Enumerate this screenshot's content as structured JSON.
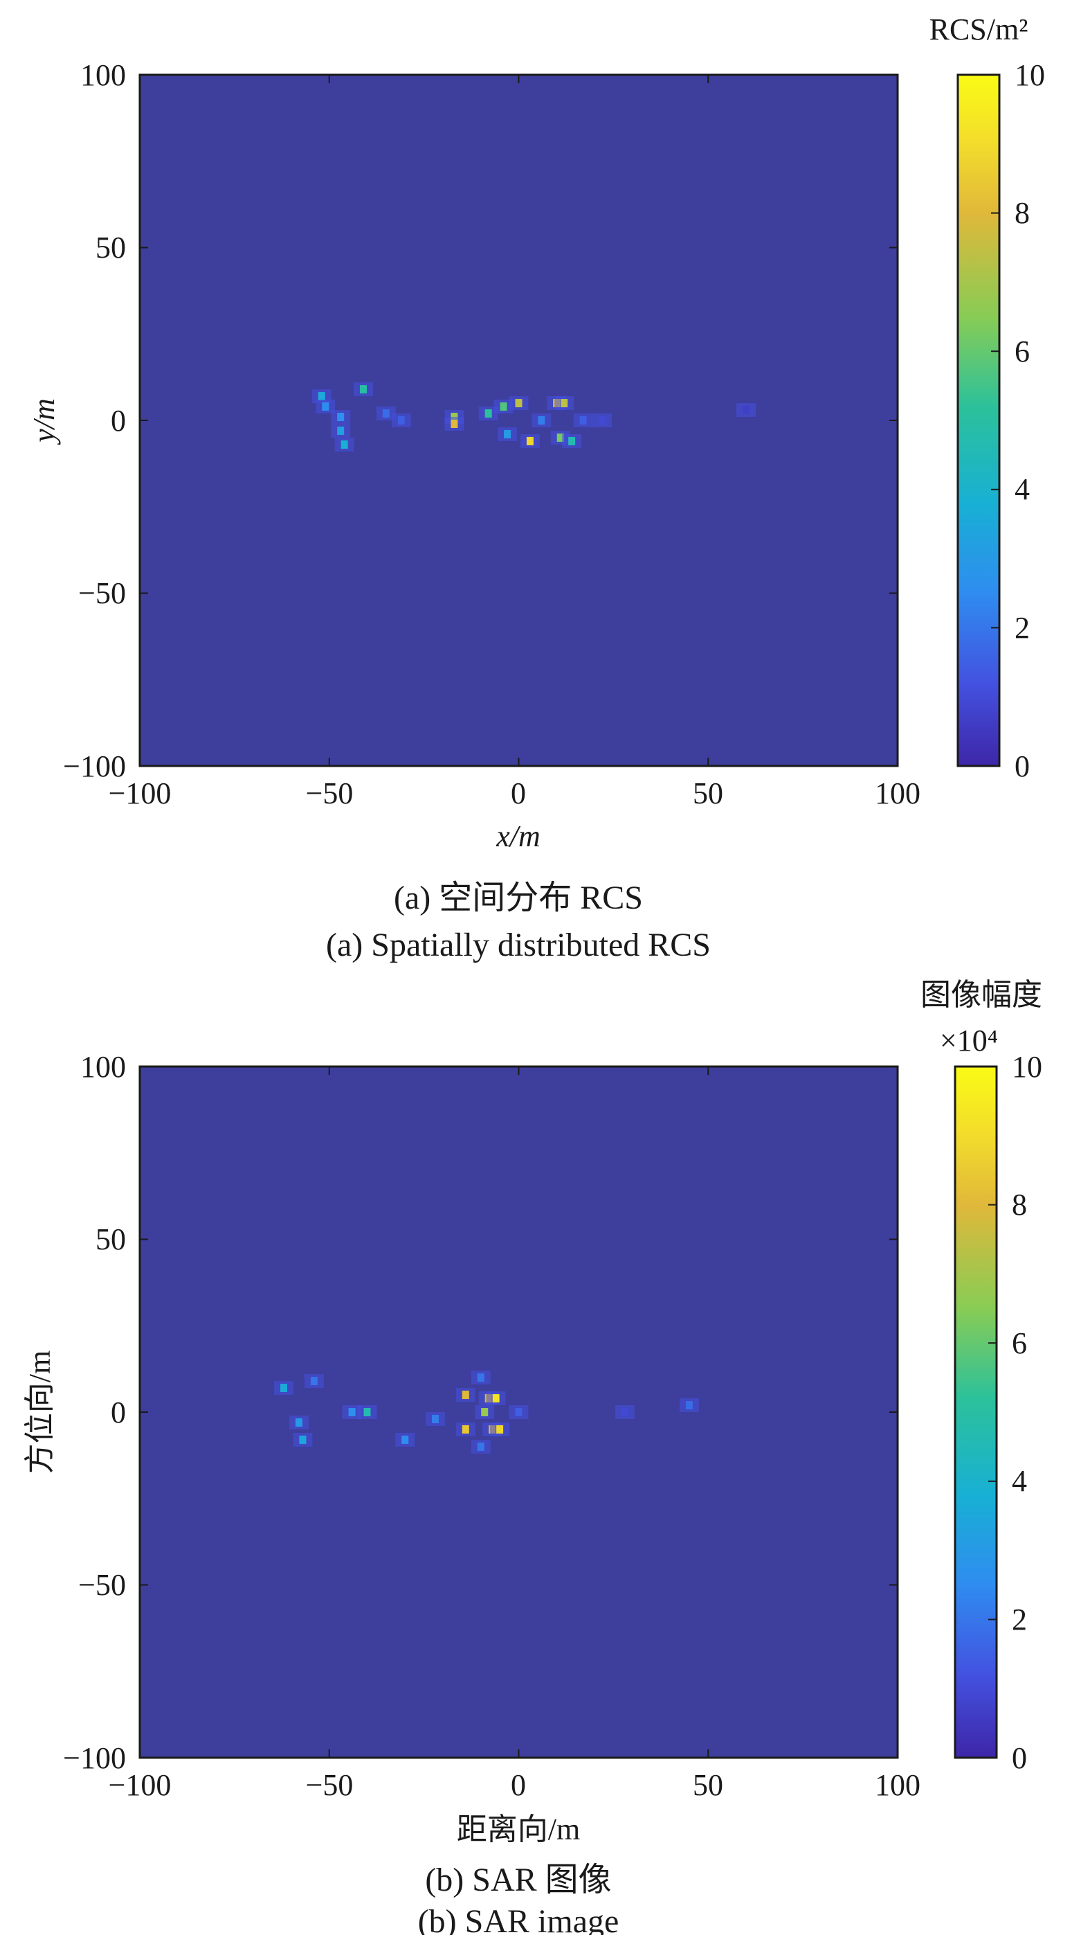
{
  "colors": {
    "background": "#3e3e9c",
    "colormap": [
      "#3e26a8",
      "#4352e0",
      "#2f8cf0",
      "#18b0d4",
      "#2cc19a",
      "#88cc55",
      "#e0b83a",
      "#f3dc2c",
      "#f9fb15"
    ]
  },
  "chart_data": [
    {
      "type": "heatmap",
      "caption_zh": "(a) 空间分布 RCS",
      "caption_en": "(a) Spatially distributed RCS",
      "xlabel": "x/m",
      "ylabel": "y/m",
      "xlim": [
        -100,
        100
      ],
      "ylim": [
        -100,
        100
      ],
      "x_ticks": [
        "−100",
        "−50",
        "0",
        "50",
        "100"
      ],
      "y_ticks": [
        "100",
        "50",
        "0",
        "−50",
        "−100"
      ],
      "colorbar": {
        "label": "RCS/m²",
        "multiplier": "",
        "range": [
          0,
          10
        ],
        "ticks": [
          "10",
          "8",
          "6",
          "4",
          "2",
          "0"
        ]
      },
      "hotspots": [
        {
          "x": -52,
          "y": 7,
          "v": 3.5
        },
        {
          "x": -51,
          "y": 4,
          "v": 2.5
        },
        {
          "x": -47,
          "y": -3,
          "v": 3.2
        },
        {
          "x": -46,
          "y": -7,
          "v": 3.8
        },
        {
          "x": -47,
          "y": 1,
          "v": 2.6
        },
        {
          "x": -41,
          "y": 9,
          "v": 4.8
        },
        {
          "x": -35,
          "y": 2,
          "v": 1.8
        },
        {
          "x": -31,
          "y": 0,
          "v": 1.5
        },
        {
          "x": -17,
          "y": 1,
          "v": 6.5
        },
        {
          "x": -17,
          "y": -1,
          "v": 7.5
        },
        {
          "x": -8,
          "y": 2,
          "v": 5.0
        },
        {
          "x": -4,
          "y": 4,
          "v": 5.5
        },
        {
          "x": -3,
          "y": -4,
          "v": 3.0
        },
        {
          "x": 0,
          "y": 5,
          "v": 7.0
        },
        {
          "x": 3,
          "y": -6,
          "v": 8.5
        },
        {
          "x": 6,
          "y": 0,
          "v": 2.2
        },
        {
          "x": 10,
          "y": 5,
          "v": 8.0
        },
        {
          "x": 11,
          "y": -5,
          "v": 6.0
        },
        {
          "x": 12,
          "y": 5,
          "v": 7.0
        },
        {
          "x": 14,
          "y": -6,
          "v": 4.5
        },
        {
          "x": 17,
          "y": 0,
          "v": 1.5
        },
        {
          "x": 22,
          "y": 0,
          "v": 1.0
        },
        {
          "x": 60,
          "y": 3,
          "v": 0.7
        }
      ]
    },
    {
      "type": "heatmap",
      "caption_zh": "(b) SAR 图像",
      "caption_en": "(b) SAR image",
      "xlabel": "距离向/m",
      "ylabel": "方位向/m",
      "xlim": [
        -100,
        100
      ],
      "ylim": [
        -100,
        100
      ],
      "x_ticks": [
        "−100",
        "−50",
        "0",
        "50",
        "100"
      ],
      "y_ticks": [
        "100",
        "50",
        "0",
        "−50",
        "−100"
      ],
      "colorbar": {
        "label": "图像幅度",
        "multiplier": "×10⁴",
        "range": [
          0,
          10
        ],
        "ticks": [
          "10",
          "8",
          "6",
          "4",
          "2",
          "0"
        ]
      },
      "hotspots": [
        {
          "x": -62,
          "y": 7,
          "v": 3.5
        },
        {
          "x": -58,
          "y": -3,
          "v": 3.0
        },
        {
          "x": -57,
          "y": -8,
          "v": 3.4
        },
        {
          "x": -54,
          "y": 9,
          "v": 2.0
        },
        {
          "x": -44,
          "y": 0,
          "v": 2.6
        },
        {
          "x": -40,
          "y": 0,
          "v": 4.5
        },
        {
          "x": -30,
          "y": -8,
          "v": 2.5
        },
        {
          "x": -22,
          "y": -2,
          "v": 2.2
        },
        {
          "x": -14,
          "y": 5,
          "v": 7.5
        },
        {
          "x": -14,
          "y": -5,
          "v": 8.0
        },
        {
          "x": -9,
          "y": 0,
          "v": 6.5
        },
        {
          "x": -8,
          "y": 4,
          "v": 7.5
        },
        {
          "x": -7,
          "y": -5,
          "v": 7.5
        },
        {
          "x": -6,
          "y": 4,
          "v": 9.0
        },
        {
          "x": -5,
          "y": -5,
          "v": 8.5
        },
        {
          "x": -10,
          "y": 10,
          "v": 2.0
        },
        {
          "x": -10,
          "y": -10,
          "v": 2.0
        },
        {
          "x": 0,
          "y": 0,
          "v": 1.5
        },
        {
          "x": 28,
          "y": 0,
          "v": 1.0
        },
        {
          "x": 45,
          "y": 2,
          "v": 1.8
        }
      ]
    }
  ]
}
